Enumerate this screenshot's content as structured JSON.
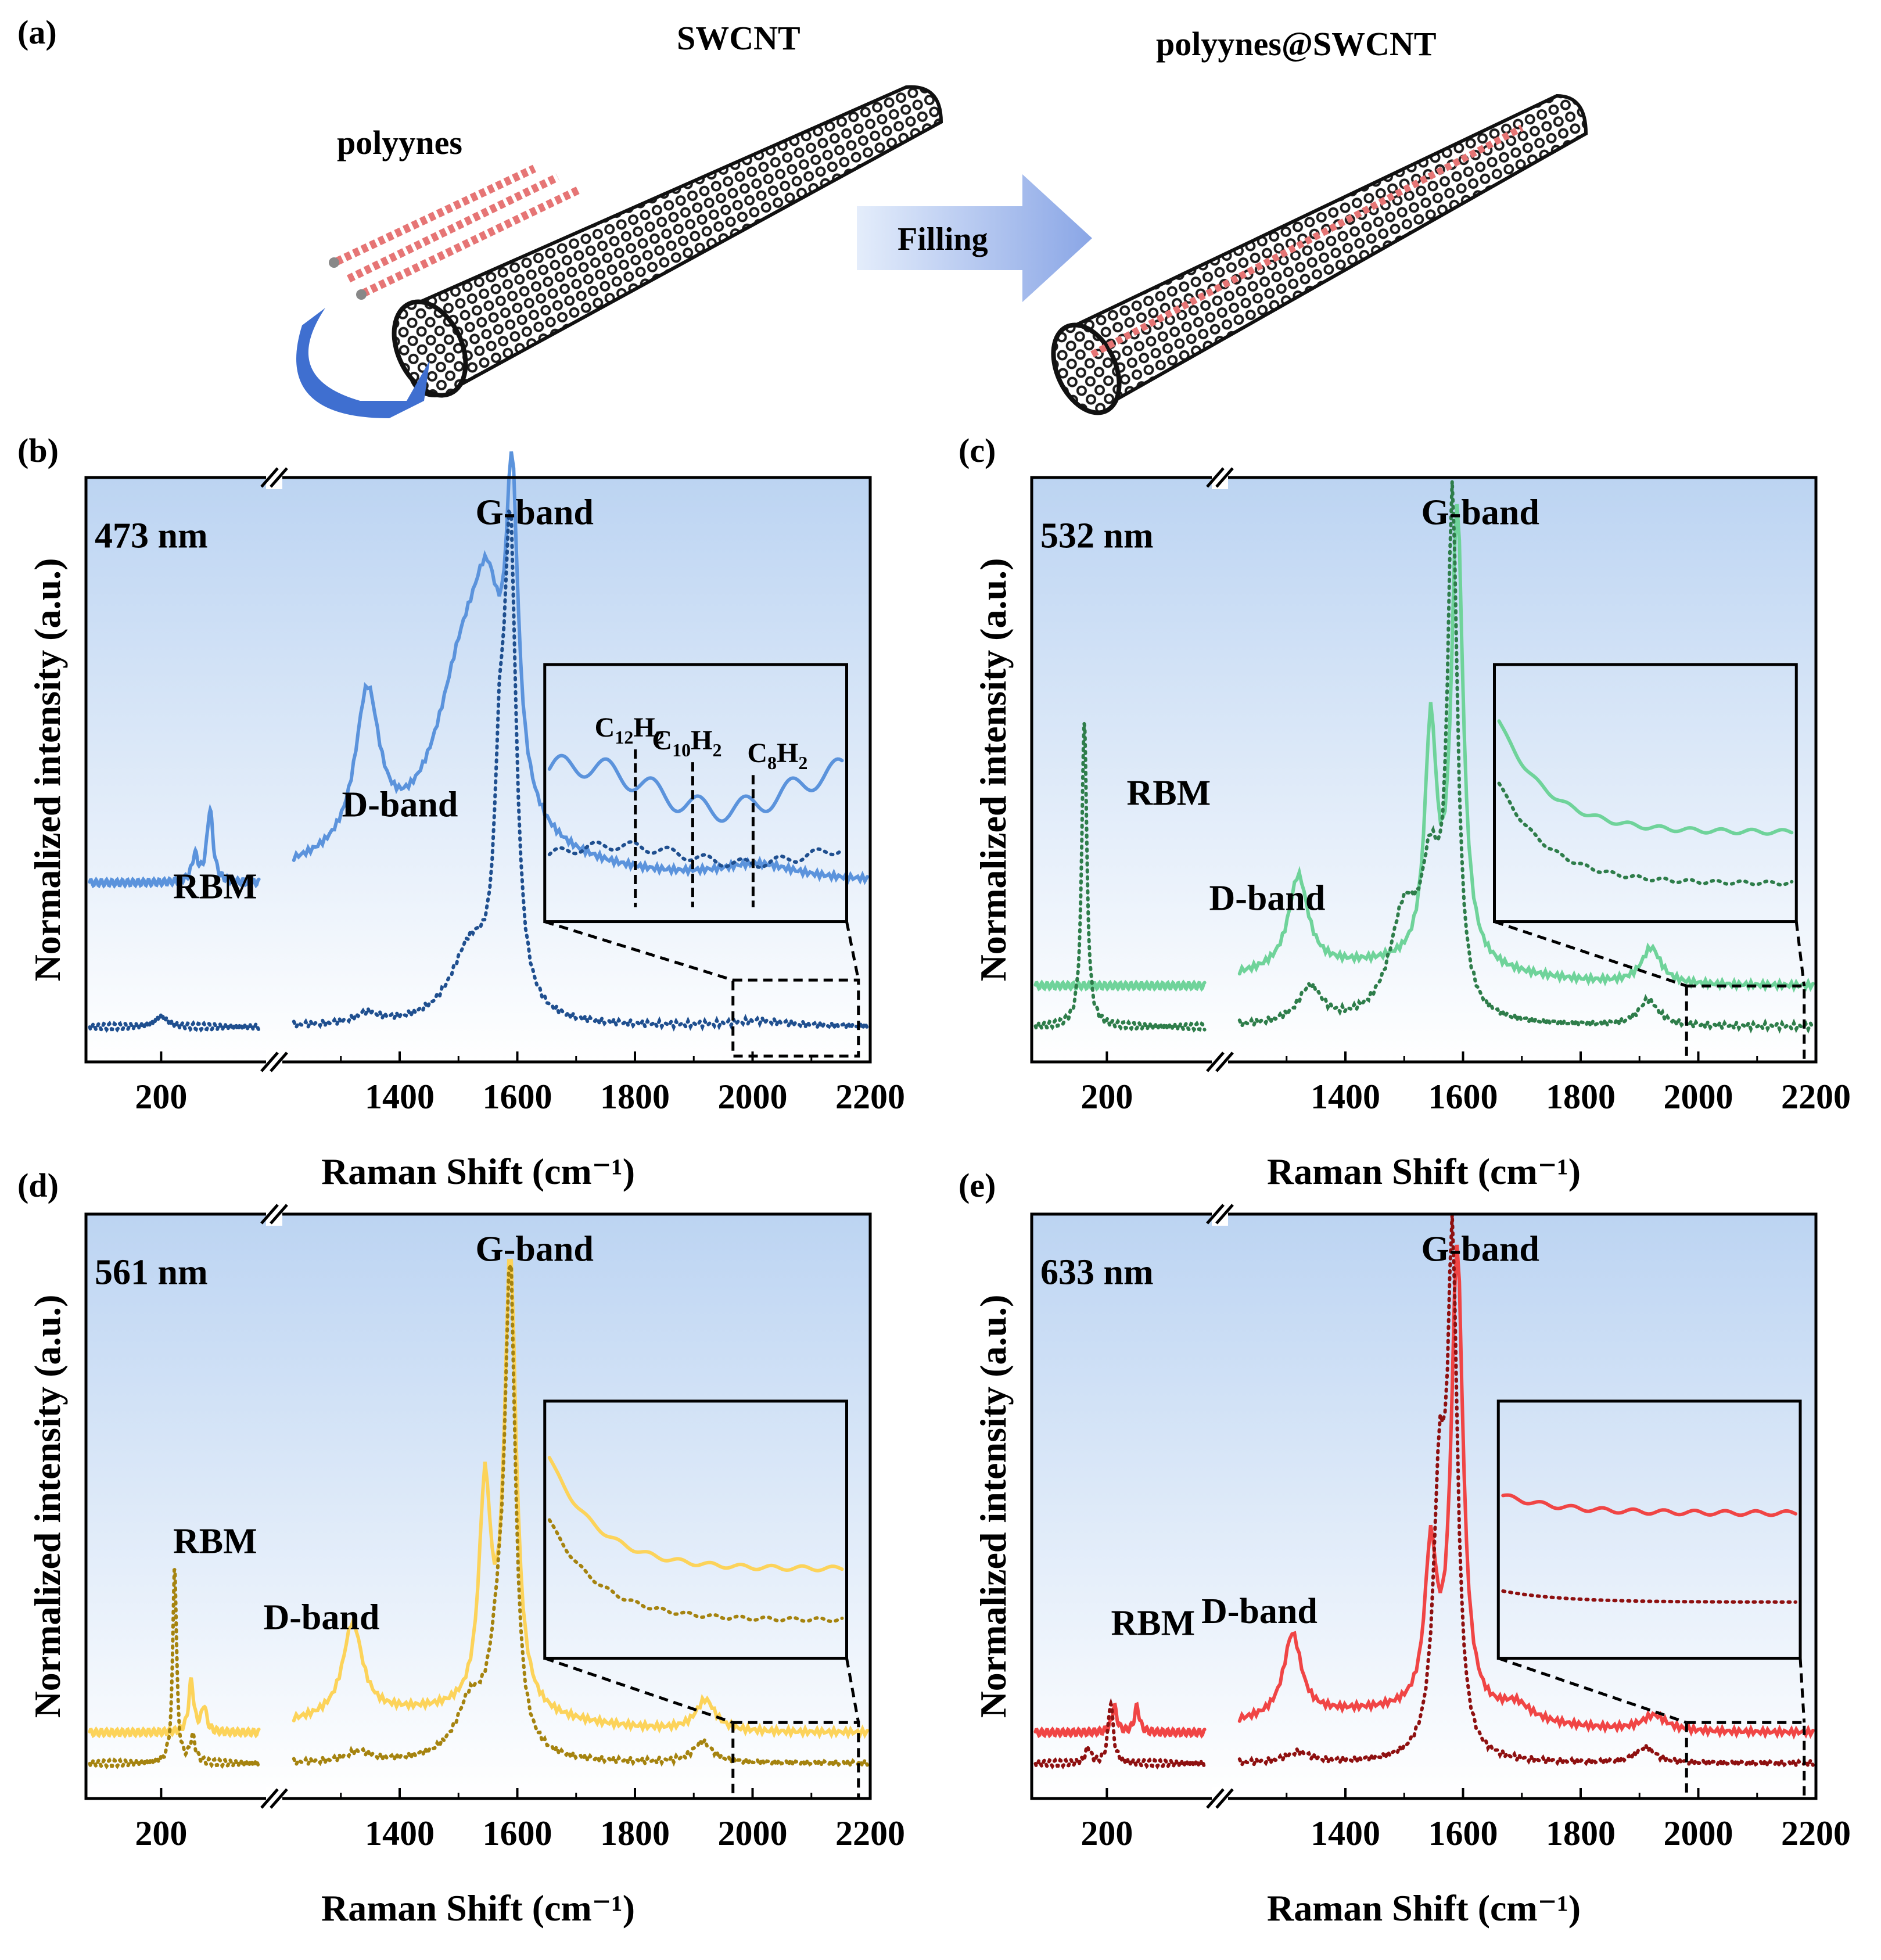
{
  "figure": {
    "panel_a": {
      "label": "(a)",
      "polyynes_label": "polyynes",
      "swcnt_label": "SWCNT",
      "filling_label": "Filling",
      "result_label": "polyynes@SWCNT"
    },
    "colors": {
      "blue": "#5b93dc",
      "blue_dark": "#1f4f8f",
      "green": "#6fd39a",
      "green_dark": "#2e7d4a",
      "yellow": "#fcd35a",
      "yellow_dark": "#a5830f",
      "red": "#f04545",
      "red_dark": "#8e1010",
      "panel_bg_top": "#bcd4f2"
    }
  },
  "chart_data": [
    {
      "panel": "(b)",
      "type": "line",
      "laser": "473 nm",
      "xlabel": "Raman Shift (cm⁻¹)",
      "ylabel": "Normalized intensity (a.u.)",
      "xticks": [
        "200",
        "1400",
        "1600",
        "1800",
        "2000",
        "2200"
      ],
      "xlim_low": [
        100,
        340
      ],
      "xlim_high": [
        1200,
        2200
      ],
      "annotations": {
        "rbm": "RBM",
        "dband": "D-band",
        "gband": "G-band"
      },
      "inset_labels": [
        {
          "base": "C",
          "sub1": "12",
          "mid": "H",
          "sub2": "2"
        },
        {
          "base": "C",
          "sub1": "10",
          "mid": "H",
          "sub2": "2"
        },
        {
          "base": "C",
          "sub1": "8",
          "mid": "H",
          "sub2": "2"
        }
      ],
      "series": [
        {
          "name": "polyynes@SWCNT",
          "style": "solid",
          "rbm_peaks": [
            {
              "x": 265,
              "h": 0.14,
              "w": 5
            },
            {
              "x": 245,
              "h": 0.05,
              "w": 5
            }
          ],
          "peaks": [
            {
              "x": 1345,
              "h": 0.3,
              "w": 25
            },
            {
              "x": 1510,
              "h": 0.35,
              "w": 60
            },
            {
              "x": 1550,
              "h": 0.3,
              "w": 30
            },
            {
              "x": 1591,
              "h": 0.58,
              "w": 12
            },
            {
              "x": 2010,
              "h": 0.03,
              "w": 80
            }
          ],
          "baseline": 0.0,
          "offset": 0.28
        },
        {
          "name": "SWCNT",
          "style": "dotted",
          "rbm_peaks": [
            {
              "x": 200,
              "h": 0.02,
              "w": 10
            }
          ],
          "peaks": [
            {
              "x": 1345,
              "h": 0.02,
              "w": 25
            },
            {
              "x": 1520,
              "h": 0.14,
              "w": 40
            },
            {
              "x": 1570,
              "h": 0.35,
              "w": 10
            },
            {
              "x": 1588,
              "h": 0.9,
              "w": 12
            },
            {
              "x": 2010,
              "h": 0.01,
              "w": 60
            }
          ],
          "baseline": 0.0,
          "offset": 0.0
        }
      ]
    },
    {
      "panel": "(c)",
      "type": "line",
      "laser": "532 nm",
      "xlabel": "Raman Shift (cm⁻¹)",
      "ylabel": "Normalized intensity (a.u.)",
      "xticks": [
        "200",
        "1400",
        "1600",
        "1800",
        "2000",
        "2200"
      ],
      "xlim_low": [
        100,
        340
      ],
      "xlim_high": [
        1200,
        2200
      ],
      "annotations": {
        "rbm": "RBM",
        "dband": "D-band",
        "gband": "G-band"
      },
      "series": [
        {
          "name": "polyynes@SWCNT",
          "style": "solid",
          "rbm_peaks": [
            {
              "x": 170,
              "h": 0.0,
              "w": 10
            },
            {
              "x": 170,
              "h": 0.0,
              "w": 10
            }
          ],
          "peaks": [
            {
              "x": 1320,
              "h": 0.18,
              "w": 20
            },
            {
              "x": 1545,
              "h": 0.45,
              "w": 12
            },
            {
              "x": 1590,
              "h": 0.88,
              "w": 12
            },
            {
              "x": 1920,
              "h": 0.07,
              "w": 20
            }
          ],
          "baseline": 0.0,
          "offset": 0.08
        },
        {
          "name": "SWCNT",
          "style": "dotted",
          "rbm_peaks": [
            {
              "x": 170,
              "h": 0.6,
              "w": 4
            }
          ],
          "peaks": [
            {
              "x": 1340,
              "h": 0.07,
              "w": 25
            },
            {
              "x": 1500,
              "h": 0.2,
              "w": 30
            },
            {
              "x": 1545,
              "h": 0.25,
              "w": 20
            },
            {
              "x": 1582,
              "h": 0.98,
              "w": 10
            },
            {
              "x": 1915,
              "h": 0.05,
              "w": 20
            }
          ],
          "baseline": 0.0,
          "offset": 0.0
        }
      ]
    },
    {
      "panel": "(d)",
      "type": "line",
      "laser": "561 nm",
      "xlabel": "Raman Shift (cm⁻¹)",
      "ylabel": "Normalized intensity (a.u.)",
      "xticks": [
        "200",
        "1400",
        "1600",
        "1800",
        "2000",
        "2200"
      ],
      "xlim_low": [
        100,
        340
      ],
      "xlim_high": [
        1200,
        2200
      ],
      "annotations": {
        "rbm": "RBM",
        "dband": "D-band",
        "gband": "G-band"
      },
      "series": [
        {
          "name": "polyynes@SWCNT",
          "style": "solid",
          "rbm_peaks": [
            {
              "x": 240,
              "h": 0.1,
              "w": 4
            },
            {
              "x": 257,
              "h": 0.05,
              "w": 4
            }
          ],
          "peaks": [
            {
              "x": 1320,
              "h": 0.18,
              "w": 20
            },
            {
              "x": 1545,
              "h": 0.42,
              "w": 12
            },
            {
              "x": 1588,
              "h": 0.88,
              "w": 12
            },
            {
              "x": 1920,
              "h": 0.06,
              "w": 20
            }
          ],
          "baseline": 0.0,
          "offset": 0.06
        },
        {
          "name": "SWCNT",
          "style": "dotted",
          "rbm_peaks": [
            {
              "x": 218,
              "h": 0.39,
              "w": 3
            },
            {
              "x": 242,
              "h": 0.05,
              "w": 4
            }
          ],
          "peaks": [
            {
              "x": 1330,
              "h": 0.02,
              "w": 25
            },
            {
              "x": 1520,
              "h": 0.1,
              "w": 30
            },
            {
              "x": 1570,
              "h": 0.2,
              "w": 20
            },
            {
              "x": 1588,
              "h": 0.87,
              "w": 10
            },
            {
              "x": 1915,
              "h": 0.04,
              "w": 20
            }
          ],
          "baseline": 0.0,
          "offset": 0.0
        }
      ]
    },
    {
      "panel": "(e)",
      "type": "line",
      "laser": "633 nm",
      "xlabel": "Raman Shift (cm⁻¹)",
      "ylabel": "Normalized intensity (a.u.)",
      "xticks": [
        "200",
        "1400",
        "1600",
        "1800",
        "2000",
        "2200"
      ],
      "xlim_low": [
        100,
        340
      ],
      "xlim_high": [
        1200,
        2200
      ],
      "annotations": {
        "rbm": "RBM",
        "dband": "D-band",
        "gband": "G-band"
      },
      "series": [
        {
          "name": "polyynes@SWCNT",
          "style": "solid",
          "rbm_peaks": [
            {
              "x": 210,
              "h": 0.05,
              "w": 4
            },
            {
              "x": 240,
              "h": 0.05,
              "w": 4
            }
          ],
          "peaks": [
            {
              "x": 1310,
              "h": 0.16,
              "w": 18
            },
            {
              "x": 1545,
              "h": 0.3,
              "w": 12
            },
            {
              "x": 1590,
              "h": 0.9,
              "w": 12
            },
            {
              "x": 1690,
              "h": 0.03,
              "w": 30
            },
            {
              "x": 1925,
              "h": 0.03,
              "w": 25
            }
          ],
          "baseline": 0.0,
          "offset": 0.06
        },
        {
          "name": "SWCNT",
          "style": "dotted",
          "rbm_peaks": [
            {
              "x": 205,
              "h": 0.12,
              "w": 4
            },
            {
              "x": 175,
              "h": 0.03,
              "w": 4
            }
          ],
          "peaks": [
            {
              "x": 1320,
              "h": 0.02,
              "w": 25
            },
            {
              "x": 1560,
              "h": 0.5,
              "w": 12
            },
            {
              "x": 1582,
              "h": 0.95,
              "w": 10
            },
            {
              "x": 1910,
              "h": 0.03,
              "w": 20
            }
          ],
          "baseline": 0.0,
          "offset": 0.0
        }
      ]
    }
  ]
}
